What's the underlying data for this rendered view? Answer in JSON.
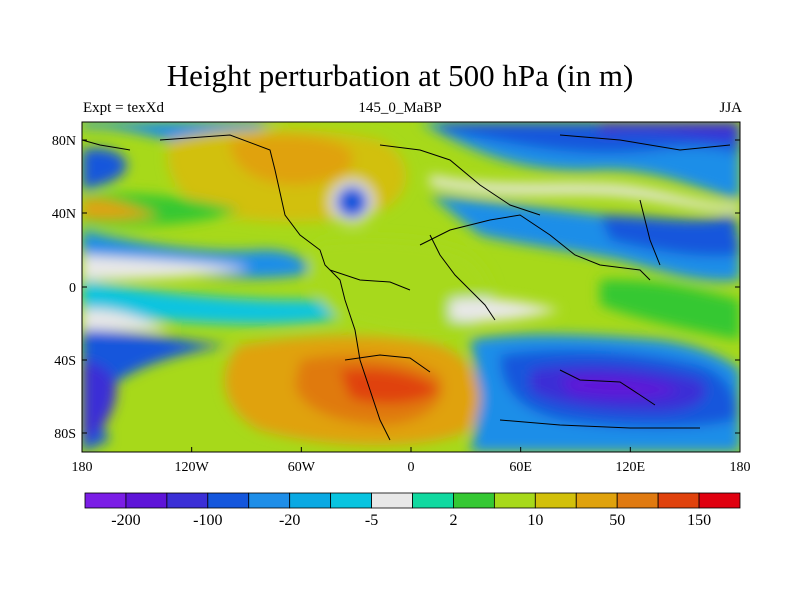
{
  "title": "Height perturbation at 500 hPa (in m)",
  "subtitle_left": "Expt = texXd",
  "subtitle_center": "145_0_MaBP",
  "subtitle_right": "JJA",
  "y_ticks": [
    "80N",
    "40N",
    "0",
    "40S",
    "80S"
  ],
  "x_ticks": [
    "180",
    "120W",
    "60W",
    "0",
    "60E",
    "120E",
    "180"
  ],
  "colorbar": {
    "colors": [
      "#7b1de6",
      "#5e14d8",
      "#3b2fd6",
      "#1456dc",
      "#1e8ee8",
      "#0aa9e3",
      "#08c4e0",
      "#e8e8e8",
      "#10d9a0",
      "#35c833",
      "#a7d91a",
      "#d2c00a",
      "#e0a20c",
      "#e07a10",
      "#e0420c",
      "#e0000f"
    ],
    "labels": [
      "-200",
      "-100",
      "-20",
      "-5",
      "2",
      "10",
      "50",
      "150"
    ]
  },
  "map": {
    "background": "#a7d91a"
  }
}
